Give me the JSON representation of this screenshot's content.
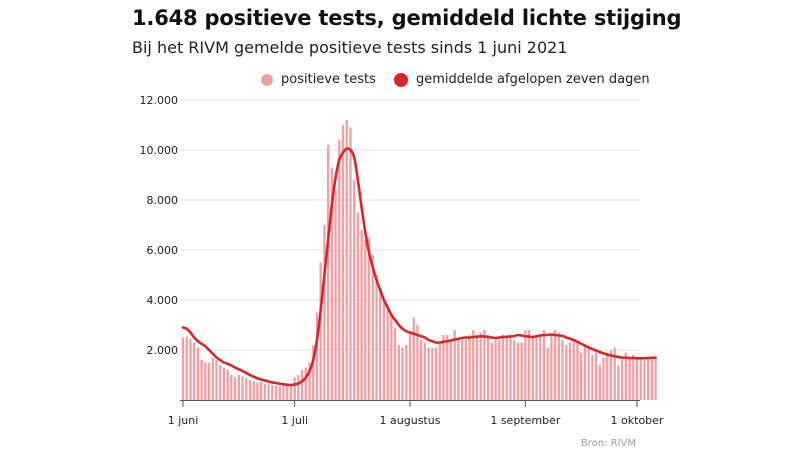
{
  "title": "1.648 positieve tests, gemiddeld lichte stijging",
  "subtitle": "Bij het RIVM gemelde positieve tests sinds 1 juni 2021",
  "source": "Bron: RIVM",
  "colors": {
    "bars": "#f0a0a0",
    "line": "#d7262b",
    "grid": "#e0e0e0"
  },
  "chart_data": {
    "type": "bar",
    "ylim": [
      0,
      12000
    ],
    "y_ticks": [
      {
        "value": 2000,
        "label": "2.000"
      },
      {
        "value": 4000,
        "label": "4.000"
      },
      {
        "value": 6000,
        "label": "6.000"
      },
      {
        "value": 8000,
        "label": "8.000"
      },
      {
        "value": 10000,
        "label": "10.000"
      },
      {
        "value": 12000,
        "label": "12.000"
      }
    ],
    "x_ticks": [
      {
        "day": 0,
        "label": "1 juni"
      },
      {
        "day": 30,
        "label": "1 juli"
      },
      {
        "day": 61,
        "label": "1 augustus"
      },
      {
        "day": 92,
        "label": "1 september"
      },
      {
        "day": 122,
        "label": "1 oktober"
      }
    ],
    "legend": [
      {
        "name": "positieve tests",
        "series": "bars"
      },
      {
        "name": "gemiddelde afgelopen zeven dagen",
        "series": "line"
      }
    ],
    "daily_positive_tests": [
      2500,
      2550,
      2450,
      2300,
      2100,
      1600,
      1500,
      1500,
      1700,
      1600,
      1400,
      1300,
      1200,
      1000,
      900,
      1000,
      950,
      900,
      800,
      750,
      700,
      720,
      650,
      620,
      600,
      580,
      560,
      600,
      620,
      650,
      900,
      1000,
      1200,
      1300,
      1500,
      2200,
      3500,
      5500,
      7000,
      10200,
      9300,
      8400,
      10400,
      11000,
      11200,
      10900,
      8800,
      7500,
      6800,
      6400,
      6500,
      5800,
      5000,
      4500,
      4000,
      3600,
      3500,
      2900,
      2200,
      2100,
      2200,
      2700,
      3300,
      3000,
      2400,
      2300,
      2100,
      2100,
      2100,
      2300,
      2600,
      2600,
      2400,
      2800,
      2500,
      2400,
      2400,
      2600,
      2800,
      2600,
      2700,
      2800,
      2600,
      2300,
      2400,
      2400,
      2600,
      2500,
      2600,
      2400,
      2300,
      2300,
      2800,
      2800,
      2500,
      2500,
      2600,
      2800,
      2100,
      2600,
      2800,
      2700,
      2400,
      2200,
      2300,
      2400,
      2300,
      1900,
      2200,
      2100,
      1800,
      1900,
      1400,
      1700,
      1900,
      2000,
      2100,
      1400,
      1700,
      1900,
      1700,
      1800,
      1700,
      1700,
      1600,
      1700,
      1650,
      1648
    ],
    "seven_day_average": [
      2900,
      2850,
      2700,
      2500,
      2350,
      2250,
      2150,
      2000,
      1850,
      1700,
      1600,
      1500,
      1450,
      1380,
      1300,
      1230,
      1160,
      1080,
      1000,
      930,
      870,
      820,
      780,
      740,
      700,
      680,
      650,
      630,
      610,
      600,
      620,
      660,
      750,
      900,
      1150,
      1600,
      2400,
      3600,
      5000,
      6400,
      7800,
      8900,
      9600,
      9900,
      10050,
      10000,
      9700,
      8800,
      7700,
      6700,
      5900,
      5300,
      4800,
      4400,
      4000,
      3700,
      3400,
      3200,
      3000,
      2850,
      2750,
      2700,
      2650,
      2600,
      2550,
      2500,
      2400,
      2350,
      2300,
      2300,
      2330,
      2350,
      2380,
      2420,
      2450,
      2480,
      2500,
      2500,
      2520,
      2530,
      2550,
      2540,
      2520,
      2500,
      2480,
      2500,
      2520,
      2530,
      2540,
      2560,
      2600,
      2580,
      2550,
      2540,
      2520,
      2550,
      2580,
      2600,
      2600,
      2620,
      2600,
      2580,
      2560,
      2500,
      2450,
      2400,
      2330,
      2250,
      2180,
      2100,
      2040,
      1980,
      1920,
      1870,
      1820,
      1780,
      1750,
      1720,
      1700,
      1690,
      1680,
      1680,
      1670,
      1670,
      1670,
      1680,
      1690,
      1700
    ]
  }
}
